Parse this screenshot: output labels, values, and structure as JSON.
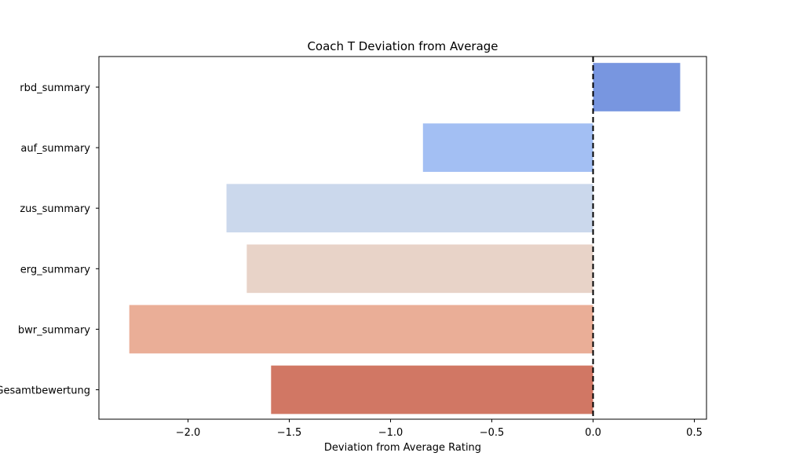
{
  "chart_data": {
    "type": "bar",
    "orientation": "horizontal",
    "title": "Coach T Deviation from Average",
    "xlabel": "Deviation from Average Rating",
    "ylabel": "",
    "categories": [
      "rbd_summary",
      "auf_summary",
      "zus_summary",
      "erg_summary",
      "bwr_summary",
      "Gesamtbewertung"
    ],
    "values": [
      0.43,
      -0.84,
      -1.81,
      -1.71,
      -2.29,
      -1.59
    ],
    "colors": [
      "#7896e0",
      "#a3bff3",
      "#cbd8ec",
      "#e8d3c8",
      "#eaae97",
      "#d17764"
    ],
    "xlim": [
      -2.44,
      0.56
    ],
    "xticks": [
      -2.0,
      -1.5,
      -1.0,
      -0.5,
      0.0,
      0.5
    ],
    "xtick_labels": [
      "−2.0",
      "−1.5",
      "−1.0",
      "−0.5",
      "0.0",
      "0.5"
    ],
    "reference_line": {
      "x": 0,
      "style": "dashed",
      "color": "#000000"
    },
    "grid": false,
    "legend": "none"
  }
}
